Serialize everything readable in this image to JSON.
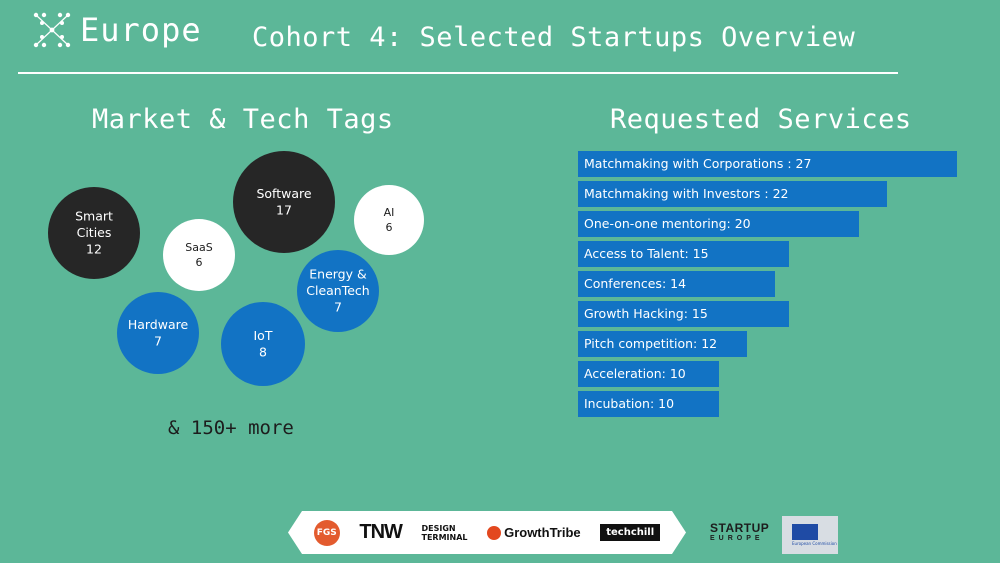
{
  "header": {
    "logo_text": "Europe",
    "title": "Cohort 4: Selected Startups Overview"
  },
  "tags_section": {
    "title": "Market & Tech Tags",
    "more": "& 150+ more"
  },
  "services_section": {
    "title": "Requested Services"
  },
  "colors": {
    "background": "#5cb798",
    "bar": "#1273c4",
    "bubble_dark": "#262626",
    "bubble_white": "#ffffff",
    "bubble_blue": "#1273c4"
  },
  "chart_data": [
    {
      "type": "bubble",
      "title": "Market & Tech Tags",
      "items": [
        {
          "label": "Smart Cities",
          "value": 12,
          "color": "dark"
        },
        {
          "label": "SaaS",
          "value": 6,
          "color": "white"
        },
        {
          "label": "Software",
          "value": 17,
          "color": "dark"
        },
        {
          "label": "AI",
          "value": 6,
          "color": "white"
        },
        {
          "label": "Energy & CleanTech",
          "value": 7,
          "color": "blue"
        },
        {
          "label": "Hardware",
          "value": 7,
          "color": "blue"
        },
        {
          "label": "IoT",
          "value": 8,
          "color": "blue"
        }
      ]
    },
    {
      "type": "bar",
      "orientation": "horizontal",
      "title": "Requested Services",
      "bars": [
        {
          "label": "Matchmaking with Corporations : 27",
          "value": 27
        },
        {
          "label": "Matchmaking with Investors : 22",
          "value": 22
        },
        {
          "label": "One-on-one mentoring: 20",
          "value": 20
        },
        {
          "label": "Access to Talent: 15",
          "value": 15
        },
        {
          "label": "Conferences: 14",
          "value": 14
        },
        {
          "label": "Growth Hacking: 15",
          "value": 15
        },
        {
          "label": "Pitch competition: 12",
          "value": 12
        },
        {
          "label": "Acceleration: 10",
          "value": 10
        },
        {
          "label": "Incubation: 10",
          "value": 10
        }
      ]
    }
  ],
  "partners": {
    "fgs": "FGS",
    "tnw": "TNW",
    "design_terminal_line1": "DESIGN",
    "design_terminal_line2": "TERMINAL",
    "growthtribe": "GrowthTribe",
    "techchill": "techchill"
  },
  "footer": {
    "startup_line1": "STARTUP",
    "startup_line2": "EUROPE",
    "eu_caption": "European Commission"
  }
}
